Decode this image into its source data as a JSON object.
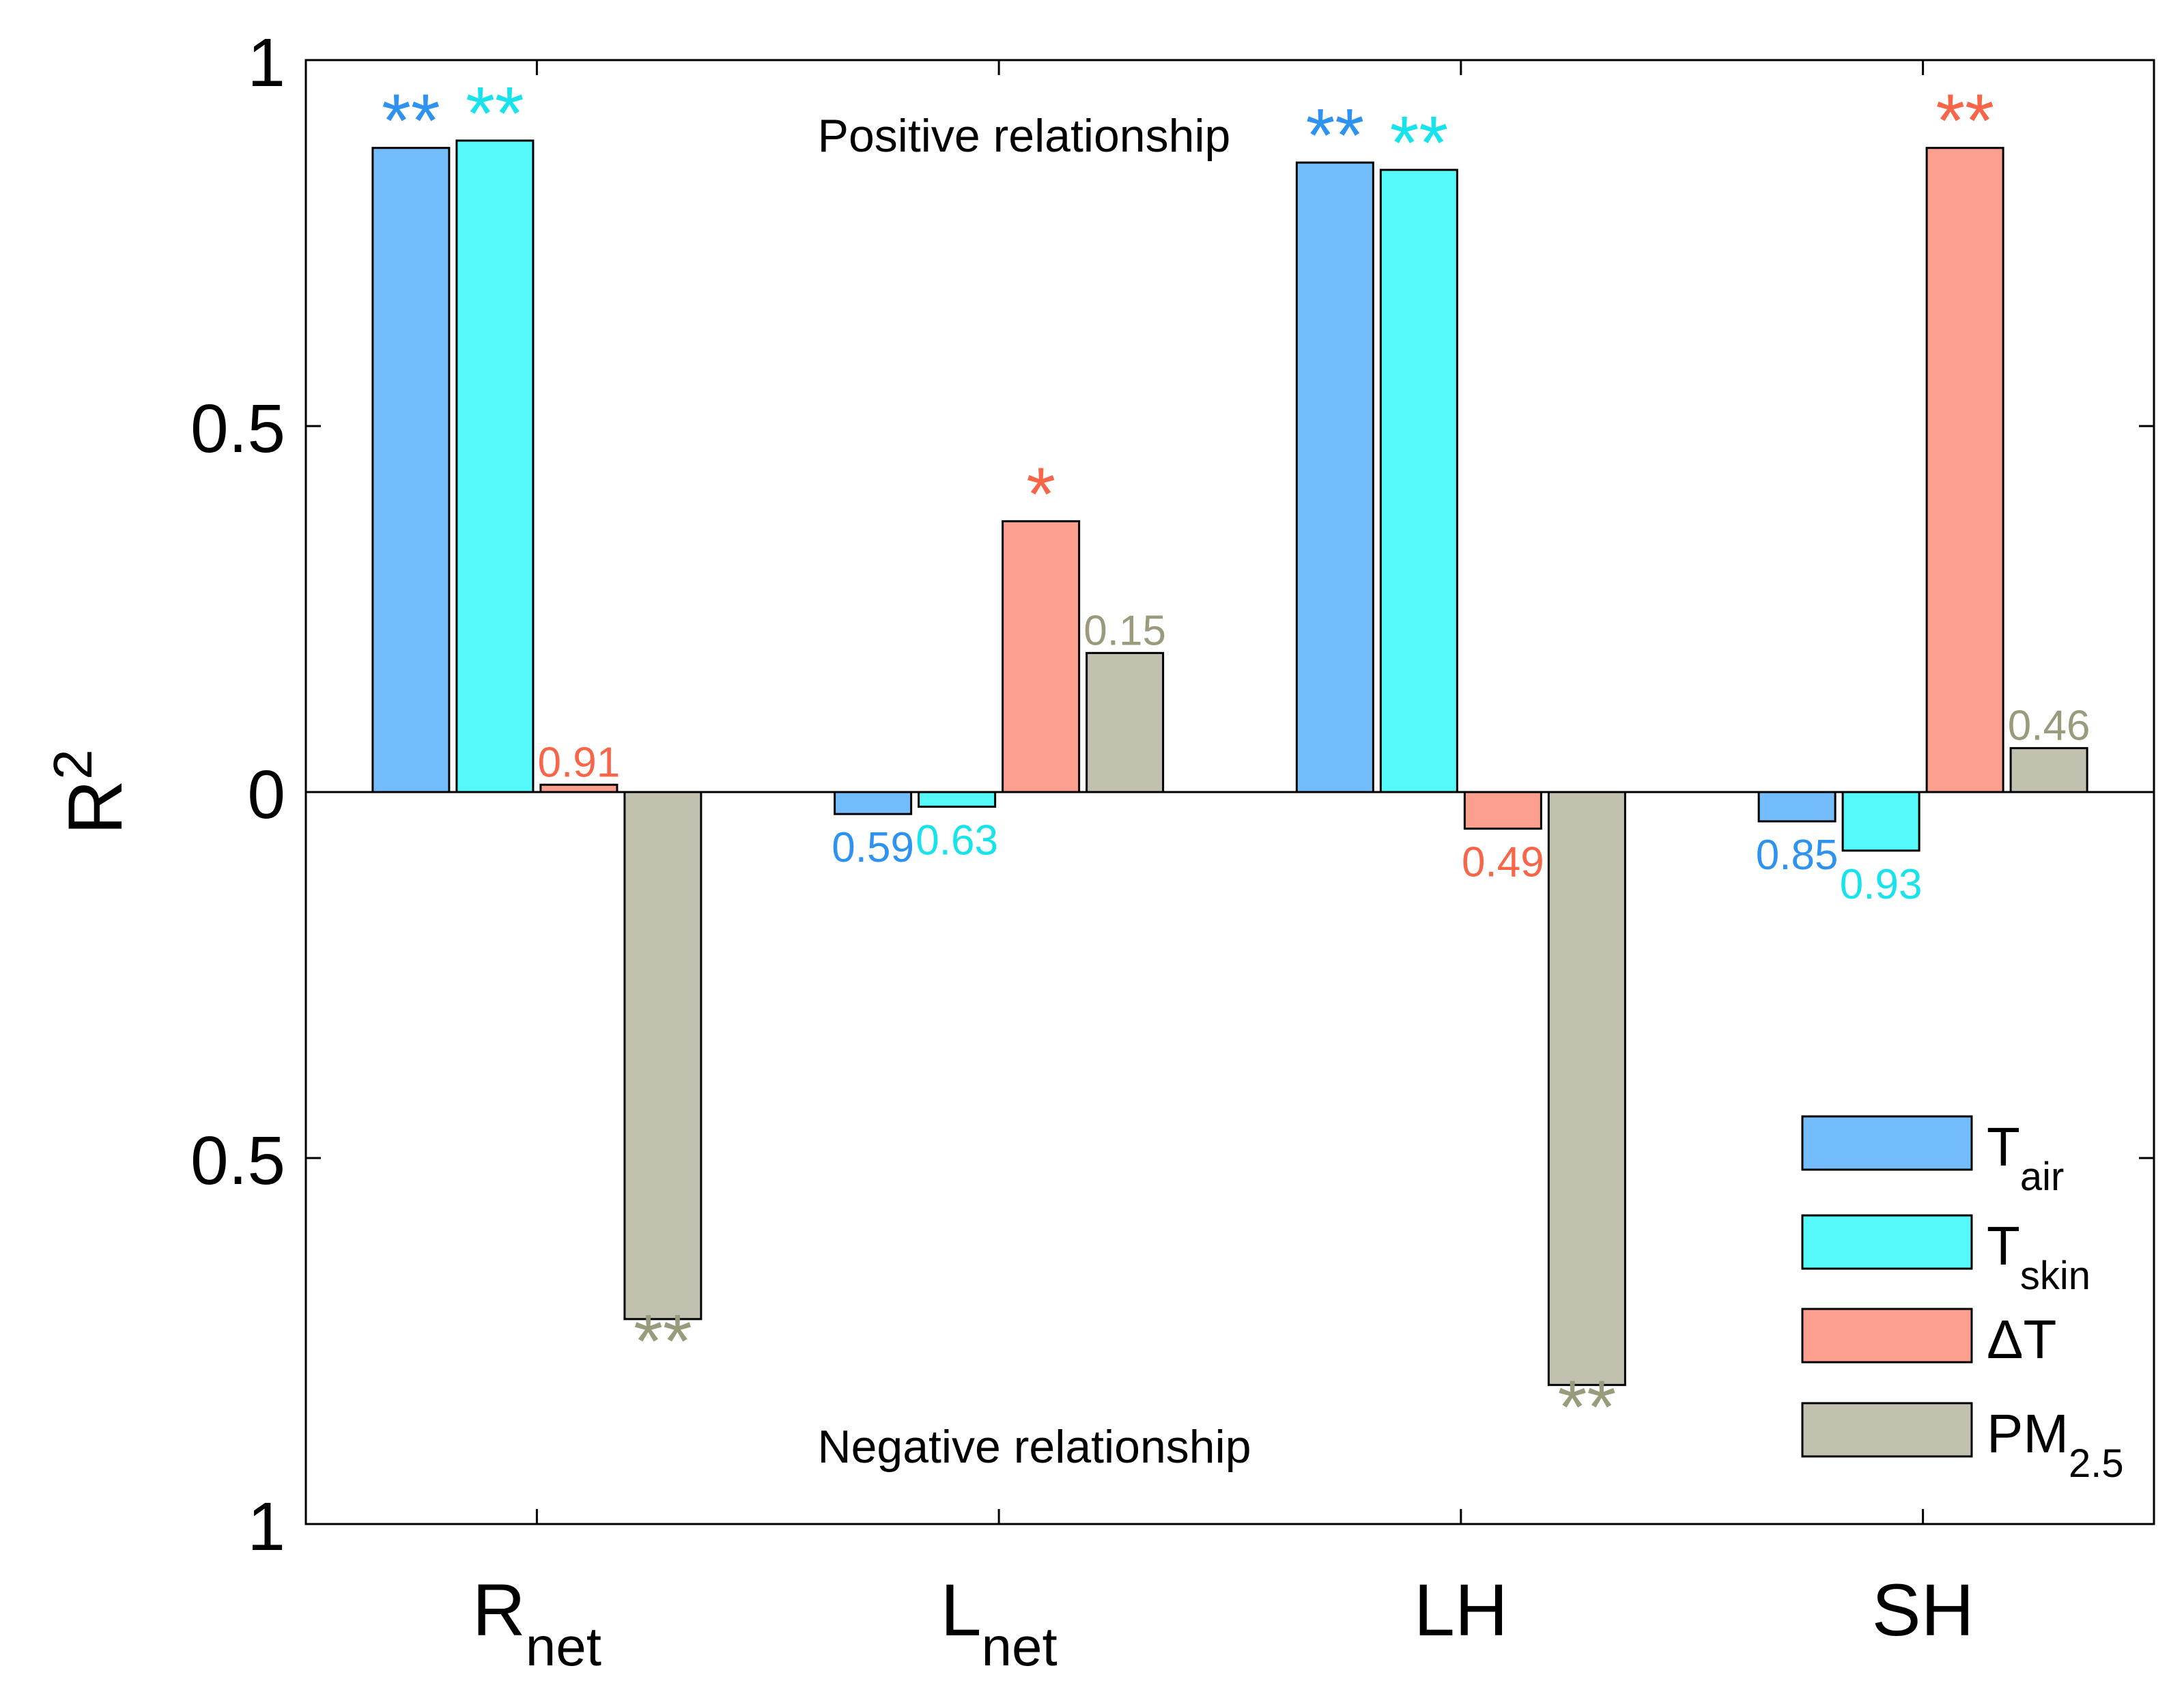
{
  "chart_data": {
    "type": "bar",
    "ylabel": "R",
    "ylabel_sup": "2",
    "ylim": [
      -1,
      1
    ],
    "yticks": [
      {
        "value": 1,
        "label": "1"
      },
      {
        "value": 0.5,
        "label": "0.5"
      },
      {
        "value": 0,
        "label": "0"
      },
      {
        "value": -0.5,
        "label": "0.5"
      },
      {
        "value": -1,
        "label": "1"
      }
    ],
    "categories": [
      {
        "main": "R",
        "sub": "net"
      },
      {
        "main": "L",
        "sub": "net"
      },
      {
        "main": "LH",
        "sub": ""
      },
      {
        "main": "SH",
        "sub": ""
      }
    ],
    "series": [
      {
        "name": "T_air",
        "label_main": "T",
        "label_sub": "air",
        "color": "#73bdfd",
        "text_color": "#2e93f0",
        "values": [
          0.88,
          -0.03,
          0.86,
          -0.04
        ],
        "annotations": [
          "**",
          "0.59",
          "**",
          "0.85"
        ]
      },
      {
        "name": "T_skin",
        "label_main": "T",
        "label_sub": "skin",
        "color": "#55f9f9",
        "text_color": "#16e3ec",
        "values": [
          0.89,
          -0.02,
          0.85,
          -0.08
        ],
        "annotations": [
          "**",
          "0.63",
          "**",
          "0.93"
        ]
      },
      {
        "name": "ΔT",
        "label_main": "ΔT",
        "label_sub": "",
        "color": "#fd9f8f",
        "text_color": "#f86549",
        "values": [
          0.01,
          0.37,
          -0.05,
          0.88
        ],
        "annotations": [
          "0.91",
          "*",
          "0.49",
          "**"
        ]
      },
      {
        "name": "PM_2.5",
        "label_main": "PM",
        "label_sub": "2.5",
        "color": "#c2c1b0",
        "text_color": "#9a9a7d",
        "values": [
          -0.72,
          0.19,
          -0.81,
          0.06
        ],
        "annotations": [
          "**",
          "0.15",
          "**",
          "0.46"
        ]
      }
    ],
    "annotations_text": {
      "positive": "Positive relationship",
      "negative": "Negative relationship"
    },
    "legend_position": "bottom-right",
    "grid": false
  }
}
